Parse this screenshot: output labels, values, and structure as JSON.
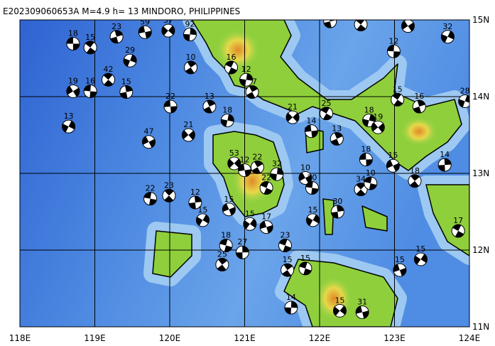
{
  "title": "E202309060653A  M=4.9  h= 13  MINDORO, PHILIPPINES",
  "lon_labels": [
    "118E",
    "119E",
    "120E",
    "121E",
    "122E",
    "123E",
    "124E"
  ],
  "lat_labels": [
    "15N",
    "14N",
    "13N",
    "12N",
    "11N"
  ],
  "events": [
    {
      "label": "18",
      "lon": 118.71,
      "lat": 14.69
    },
    {
      "label": "15",
      "lon": 118.94,
      "lat": 14.64
    },
    {
      "label": "23",
      "lon": 119.29,
      "lat": 14.78
    },
    {
      "label": "29",
      "lon": 119.47,
      "lat": 14.47
    },
    {
      "label": "19",
      "lon": 118.71,
      "lat": 14.07
    },
    {
      "label": "16",
      "lon": 118.94,
      "lat": 14.07
    },
    {
      "label": "42",
      "lon": 119.18,
      "lat": 14.22
    },
    {
      "label": "15",
      "lon": 119.42,
      "lat": 14.06
    },
    {
      "label": "13",
      "lon": 118.65,
      "lat": 13.61
    },
    {
      "label": "47",
      "lon": 119.72,
      "lat": 13.41
    },
    {
      "label": "22",
      "lon": 119.74,
      "lat": 12.67
    },
    {
      "label": "23",
      "lon": 119.99,
      "lat": 12.71
    },
    {
      "label": "12",
      "lon": 120.34,
      "lat": 12.62
    },
    {
      "label": "15",
      "lon": 120.44,
      "lat": 12.39
    },
    {
      "label": "15",
      "lon": 120.79,
      "lat": 12.53
    },
    {
      "label": "18",
      "lon": 120.75,
      "lat": 12.06
    },
    {
      "label": "25",
      "lon": 120.7,
      "lat": 11.81
    },
    {
      "label": "27",
      "lon": 120.97,
      "lat": 11.97
    },
    {
      "label": "15",
      "lon": 121.07,
      "lat": 12.34
    },
    {
      "label": "17",
      "lon": 121.29,
      "lat": 12.3
    },
    {
      "label": "23",
      "lon": 121.54,
      "lat": 12.06
    },
    {
      "label": "10",
      "lon": 120.28,
      "lat": 14.38
    },
    {
      "label": "92",
      "lon": 120.27,
      "lat": 14.81
    },
    {
      "label": "37",
      "lon": 119.98,
      "lat": 14.86
    },
    {
      "label": "59",
      "lon": 119.67,
      "lat": 14.84
    },
    {
      "label": "16",
      "lon": 120.82,
      "lat": 14.38
    },
    {
      "label": "37",
      "lon": 121.1,
      "lat": 14.06
    },
    {
      "label": "12",
      "lon": 121.02,
      "lat": 14.22
    },
    {
      "label": "21",
      "lon": 121.64,
      "lat": 13.73
    },
    {
      "label": "14",
      "lon": 121.89,
      "lat": 13.55
    },
    {
      "label": "25",
      "lon": 122.09,
      "lat": 13.78
    },
    {
      "label": "13",
      "lon": 122.23,
      "lat": 13.45
    },
    {
      "label": "18",
      "lon": 122.66,
      "lat": 13.69
    },
    {
      "label": "19",
      "lon": 122.78,
      "lat": 13.6
    },
    {
      "label": "18",
      "lon": 122.62,
      "lat": 13.18
    },
    {
      "label": "15",
      "lon": 123.04,
      "lat": 13.96
    },
    {
      "label": "16",
      "lon": 123.33,
      "lat": 13.87
    },
    {
      "label": "28",
      "lon": 123.94,
      "lat": 13.94
    },
    {
      "label": "33",
      "lon": 123.18,
      "lat": 14.92
    },
    {
      "label": "12",
      "lon": 122.99,
      "lat": 14.59
    },
    {
      "label": "24",
      "lon": 122.55,
      "lat": 14.94
    },
    {
      "label": "20",
      "lon": 122.14,
      "lat": 14.98
    },
    {
      "label": "32",
      "lon": 123.71,
      "lat": 14.78
    },
    {
      "label": "10",
      "lon": 121.81,
      "lat": 12.94
    },
    {
      "label": "20",
      "lon": 121.9,
      "lat": 12.81
    },
    {
      "label": "34",
      "lon": 122.55,
      "lat": 12.79
    },
    {
      "label": "30",
      "lon": 122.24,
      "lat": 12.5
    },
    {
      "label": "15",
      "lon": 121.91,
      "lat": 12.39
    },
    {
      "label": "15",
      "lon": 122.98,
      "lat": 13.1
    },
    {
      "label": "10",
      "lon": 122.68,
      "lat": 12.87
    },
    {
      "label": "18",
      "lon": 123.27,
      "lat": 12.9
    },
    {
      "label": "14",
      "lon": 123.67,
      "lat": 13.11
    },
    {
      "label": "15",
      "lon": 123.35,
      "lat": 11.88
    },
    {
      "label": "15",
      "lon": 123.07,
      "lat": 11.74
    },
    {
      "label": "15",
      "lon": 121.81,
      "lat": 11.76
    },
    {
      "label": "15",
      "lon": 121.57,
      "lat": 11.74
    },
    {
      "label": "14",
      "lon": 121.62,
      "lat": 11.25
    },
    {
      "label": "15",
      "lon": 122.27,
      "lat": 11.21
    },
    {
      "label": "31",
      "lon": 122.57,
      "lat": 11.19
    },
    {
      "label": "22",
      "lon": 121.29,
      "lat": 12.81
    },
    {
      "label": "22",
      "lon": 121.17,
      "lat": 13.08
    },
    {
      "label": "32",
      "lon": 121.43,
      "lat": 12.99
    },
    {
      "label": "53",
      "lon": 120.86,
      "lat": 13.13
    },
    {
      "label": "12",
      "lon": 121.0,
      "lat": 13.04
    },
    {
      "label": "17",
      "lon": 123.85,
      "lat": 12.25
    },
    {
      "label": "13",
      "lon": 120.53,
      "lat": 13.87
    },
    {
      "label": "18",
      "lon": 120.77,
      "lat": 13.69
    },
    {
      "label": "21",
      "lon": 120.25,
      "lat": 13.5
    },
    {
      "label": "22",
      "lon": 120.01,
      "lat": 13.87
    }
  ]
}
